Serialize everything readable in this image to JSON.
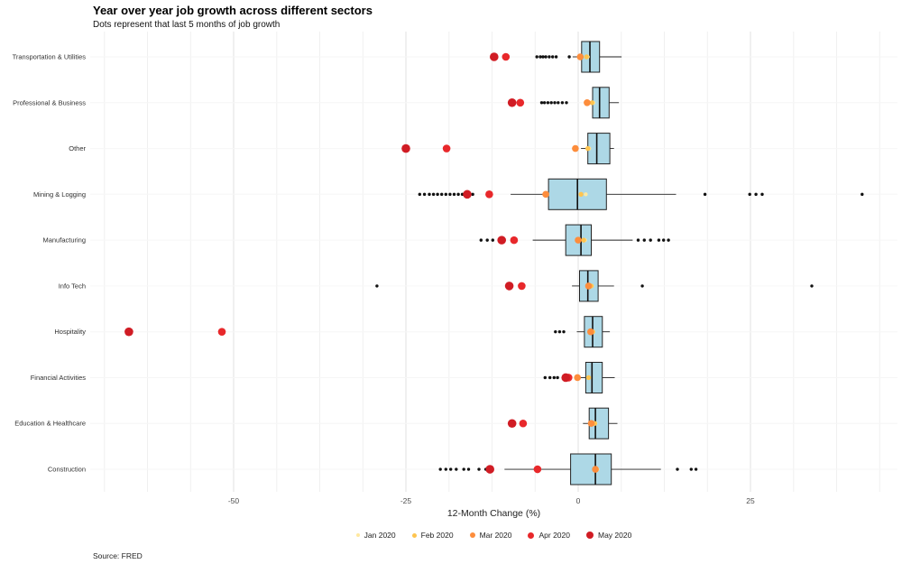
{
  "chart_data": {
    "type": "boxplot",
    "orientation": "horizontal",
    "title": "Year over year job growth across different sectors",
    "subtitle": "Dots represent that last 5 months of job growth",
    "xlabel": "12-Month Change (%)",
    "source_note": "Source: FRED",
    "x_ticks": [
      -50,
      -25,
      0,
      25
    ],
    "x_range": [
      -70,
      46
    ],
    "grid": true,
    "legend_position": "bottom",
    "box_fill": "#ADD8E6",
    "box_stroke": "#222222",
    "outlier_color": "#111111",
    "month_order": [
      "jan",
      "feb",
      "mar",
      "apr",
      "may"
    ],
    "month_colors": {
      "jan": "#FFE9A0",
      "feb": "#FEC44F",
      "mar": "#FD8D3C",
      "apr": "#E8282B",
      "may": "#D01C24"
    },
    "dot_radii": {
      "jan": 2.2,
      "feb": 2.7,
      "mar": 3.8,
      "apr": 4.3,
      "may": 4.8
    },
    "legend": [
      {
        "label": "Jan 2020",
        "color": "#FFE9A0",
        "size": 4
      },
      {
        "label": "Feb 2020",
        "color": "#FEC44F",
        "size": 5
      },
      {
        "label": "Mar 2020",
        "color": "#FD8D3C",
        "size": 6
      },
      {
        "label": "Apr 2020",
        "color": "#E8282B",
        "size": 7
      },
      {
        "label": "May 2020",
        "color": "#D01C24",
        "size": 8
      }
    ],
    "rows": [
      {
        "sector": "Transportation & Utilities",
        "box": {
          "lo": -0.8,
          "q1": 0.5,
          "med": 1.7,
          "q3": 3.1,
          "hi": 6.3
        },
        "outliers": [
          -6.0,
          -5.5,
          -5.1,
          -4.7,
          -4.2,
          -3.7,
          -3.2,
          -1.3
        ],
        "months": {
          "jan": 1.4,
          "feb": 1.2,
          "mar": 0.3,
          "apr": -10.5,
          "may": -12.2
        }
      },
      {
        "sector": "Professional & Business",
        "box": {
          "lo": 0.9,
          "q1": 2.1,
          "med": 3.1,
          "q3": 4.5,
          "hi": 5.9
        },
        "outliers": [
          -5.3,
          -4.9,
          -4.4,
          -3.9,
          -3.4,
          -2.9,
          -2.3,
          -1.7
        ],
        "months": {
          "jan": 2.2,
          "feb": 2.0,
          "mar": 1.3,
          "apr": -8.4,
          "may": -9.6
        }
      },
      {
        "sector": "Other",
        "box": {
          "lo": 0.4,
          "q1": 1.4,
          "med": 2.7,
          "q3": 4.6,
          "hi": 5.2
        },
        "outliers": [],
        "months": {
          "jan": 1.6,
          "feb": 1.4,
          "mar": -0.4,
          "apr": -19.1,
          "may": -25.0
        }
      },
      {
        "sector": "Mining & Logging",
        "box": {
          "lo": -9.8,
          "q1": -4.3,
          "med": -0.1,
          "q3": 4.1,
          "hi": 14.2
        },
        "outliers": [
          -23.0,
          -22.3,
          -21.6,
          -21.0,
          -20.4,
          -19.8,
          -19.2,
          -18.6,
          -18.0,
          -17.4,
          -16.8,
          -15.3,
          18.4,
          24.9,
          25.8,
          26.7,
          41.2
        ],
        "months": {
          "jan": 1.1,
          "feb": 0.4,
          "mar": -4.7,
          "apr": -12.9,
          "may": -16.1
        }
      },
      {
        "sector": "Manufacturing",
        "box": {
          "lo": -6.6,
          "q1": -1.8,
          "med": 0.4,
          "q3": 1.9,
          "hi": 7.9
        },
        "outliers": [
          -14.1,
          -13.2,
          -12.4,
          8.7,
          9.6,
          10.5,
          11.7,
          12.4,
          13.1
        ],
        "months": {
          "jan": 1.0,
          "feb": 0.8,
          "mar": 0.0,
          "apr": -9.3,
          "may": -11.1
        }
      },
      {
        "sector": "Info Tech",
        "box": {
          "lo": -0.9,
          "q1": 0.2,
          "med": 1.4,
          "q3": 2.9,
          "hi": 5.2
        },
        "outliers": [
          -29.2,
          9.3,
          33.9
        ],
        "months": {
          "jan": 2.0,
          "feb": 1.9,
          "mar": 1.5,
          "apr": -8.2,
          "may": -10.0
        }
      },
      {
        "sector": "Hospitality",
        "box": {
          "lo": -0.2,
          "q1": 0.9,
          "med": 2.1,
          "q3": 3.5,
          "hi": 4.6
        },
        "outliers": [
          -3.3,
          -2.7,
          -2.1
        ],
        "months": {
          "jan": 2.2,
          "feb": 2.1,
          "mar": 1.8,
          "apr": -51.7,
          "may": -65.2
        }
      },
      {
        "sector": "Financial Activities",
        "box": {
          "lo": 0.3,
          "q1": 1.1,
          "med": 2.0,
          "q3": 3.5,
          "hi": 5.3
        },
        "outliers": [
          -4.8,
          -4.1,
          -3.5,
          -3.0
        ],
        "months": {
          "jan": 1.6,
          "feb": 1.5,
          "mar": -0.1,
          "apr": -1.4,
          "may": -1.8
        }
      },
      {
        "sector": "Education & Healthcare",
        "box": {
          "lo": 0.7,
          "q1": 1.6,
          "med": 2.5,
          "q3": 4.4,
          "hi": 5.7
        },
        "outliers": [],
        "months": {
          "jan": 2.5,
          "feb": 2.4,
          "mar": 1.9,
          "apr": -8.0,
          "may": -9.6
        }
      },
      {
        "sector": "Construction",
        "box": {
          "lo": -10.7,
          "q1": -1.1,
          "med": 2.5,
          "q3": 4.8,
          "hi": 12.0
        },
        "outliers": [
          -20.0,
          -19.2,
          -18.5,
          -17.7,
          -16.6,
          -15.9,
          -14.4,
          -13.4,
          14.4,
          16.4,
          17.1
        ],
        "months": {
          "jan": 2.8,
          "feb": 2.6,
          "mar": 2.5,
          "apr": -5.9,
          "may": -12.8
        }
      }
    ]
  }
}
